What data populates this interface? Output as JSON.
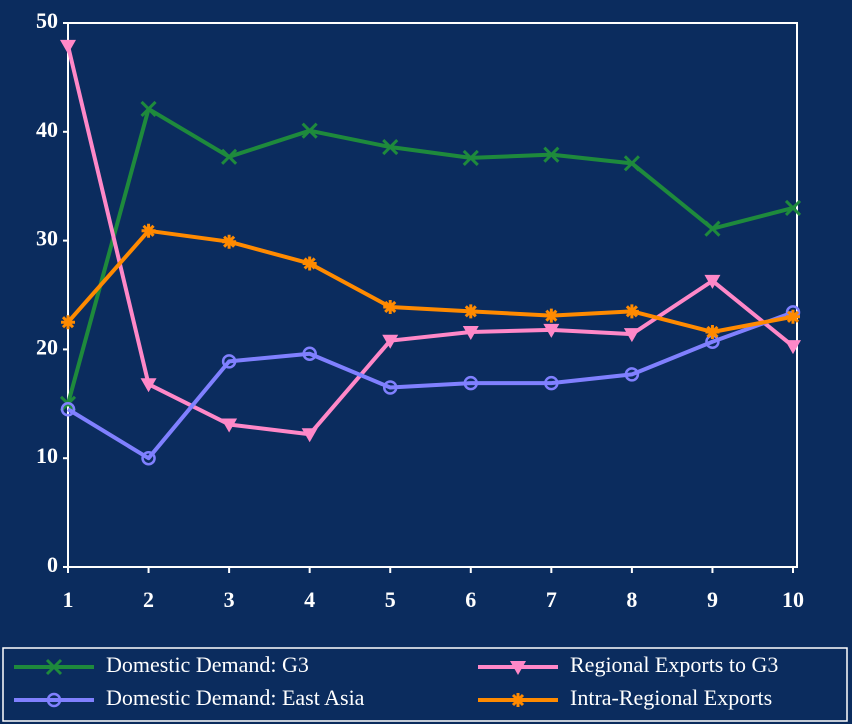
{
  "chart_data": {
    "type": "line",
    "x": [
      1,
      2,
      3,
      4,
      5,
      6,
      7,
      8,
      9,
      10
    ],
    "xlim": [
      1,
      10
    ],
    "xticks": [
      1,
      2,
      3,
      4,
      5,
      6,
      7,
      8,
      9,
      10
    ],
    "ylim": [
      0,
      50
    ],
    "yticks": [
      0,
      10,
      20,
      30,
      40,
      50
    ],
    "grid": false,
    "legend": "bottom",
    "series": [
      {
        "name": "Domestic Demand: G3",
        "color": "#1e8a3c",
        "marker": "x",
        "values": [
          15,
          42.1,
          37.7,
          40.1,
          38.6,
          37.6,
          37.9,
          37.1,
          31.1,
          33.0
        ]
      },
      {
        "name": "Regional Exports to G3",
        "color": "#ff88c8",
        "marker": "triangle-down",
        "values": [
          47.9,
          16.8,
          13.1,
          12.2,
          20.8,
          21.6,
          21.8,
          21.4,
          26.3,
          20.3
        ]
      },
      {
        "name": "Domestic Demand: East Asia",
        "color": "#8080ff",
        "marker": "circle",
        "values": [
          14.5,
          10.0,
          18.9,
          19.6,
          16.5,
          16.9,
          16.9,
          17.7,
          20.7,
          23.4
        ]
      },
      {
        "name": "Intra-Regional Exports",
        "color": "#ff8a00",
        "marker": "asterisk",
        "values": [
          22.5,
          30.9,
          29.9,
          27.9,
          23.9,
          23.5,
          23.1,
          23.5,
          21.6,
          23.0
        ]
      }
    ]
  }
}
